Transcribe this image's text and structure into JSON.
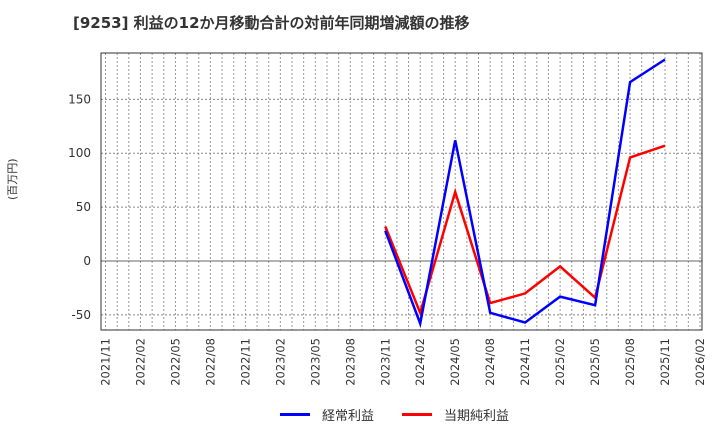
{
  "title": "[9253]  利益の12か月移動合計の対前年同期増減額の推移",
  "ylabel": "(百万円)",
  "legend": [
    {
      "label": "経常利益",
      "color": "#0000ff"
    },
    {
      "label": "当期純利益",
      "color": "#ff0000"
    }
  ],
  "chart_data": {
    "type": "line",
    "title": "[9253] 利益の12か月移動合計の対前年同期増減額の推移",
    "xlabel": "",
    "ylabel": "(百万円)",
    "x_ticks": [
      "2021/11",
      "2022/02",
      "2022/05",
      "2022/08",
      "2022/11",
      "2023/02",
      "2023/05",
      "2023/08",
      "2023/11",
      "2024/02",
      "2024/05",
      "2024/08",
      "2024/11",
      "2025/02",
      "2025/05",
      "2025/08",
      "2025/11",
      "2026/02"
    ],
    "y_ticks": [
      -50,
      0,
      50,
      100,
      150
    ],
    "ylim": [
      -64,
      193
    ],
    "grid": true,
    "legend_position": "bottom",
    "categories": [
      "2023/11",
      "2024/02",
      "2024/05",
      "2024/08",
      "2024/11",
      "2025/02",
      "2025/05",
      "2025/08",
      "2025/11"
    ],
    "series": [
      {
        "name": "経常利益",
        "color": "#0000ff",
        "values": [
          28,
          -58,
          112,
          -48,
          -57,
          -33,
          -41,
          166,
          187
        ]
      },
      {
        "name": "当期純利益",
        "color": "#ff0000",
        "values": [
          32,
          -48,
          64,
          -39,
          -30,
          -5,
          -34,
          96,
          107
        ]
      }
    ]
  }
}
